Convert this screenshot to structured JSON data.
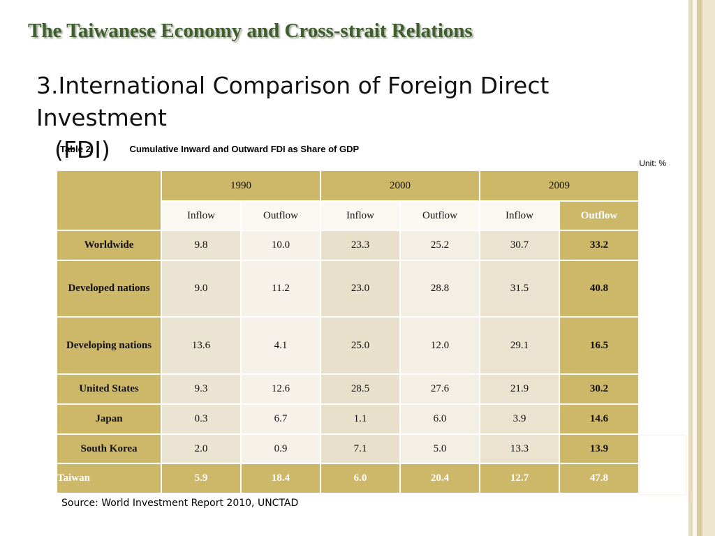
{
  "slide": {
    "title": "The Taiwanese Economy and Cross-strait Relations",
    "heading_line1": "3.International Comparison of Foreign Direct Investment",
    "heading_line2": "(FDI)"
  },
  "table": {
    "label": "Table 2",
    "title": "Cumulative Inward and Outward FDI as Share of GDP",
    "unit": "Unit: %",
    "years": [
      "1990",
      "2000",
      "2009"
    ],
    "subheaders": [
      "Inflow",
      "Outflow",
      "Inflow",
      "Outflow",
      "Inflow",
      "Outflow"
    ],
    "rows": [
      {
        "label": "Worldwide",
        "values": [
          "9.8",
          "10.0",
          "23.3",
          "25.2",
          "30.7",
          "33.2"
        ]
      },
      {
        "label": "Developed nations",
        "values": [
          "9.0",
          "11.2",
          "23.0",
          "28.8",
          "31.5",
          "40.8"
        ]
      },
      {
        "label": "Developing nations",
        "values": [
          "13.6",
          "4.1",
          "25.0",
          "12.0",
          "29.1",
          "16.5"
        ]
      },
      {
        "label": "United States",
        "values": [
          "9.3",
          "12.6",
          "28.5",
          "27.6",
          "21.9",
          "30.2"
        ]
      },
      {
        "label": "Japan",
        "values": [
          "0.3",
          "6.7",
          "1.1",
          "6.0",
          "3.9",
          "14.6"
        ]
      },
      {
        "label": "South Korea",
        "values": [
          "2.0",
          "0.9",
          "7.1",
          "5.0",
          "13.3",
          "13.9"
        ]
      },
      {
        "label": "Taiwan",
        "values": [
          "5.9",
          "18.4",
          "6.0",
          "20.4",
          "12.7",
          "47.8"
        ]
      }
    ],
    "source": "Source: World Investment Report 2010, UNCTAD"
  },
  "colors": {
    "header_gold": "#cdb768",
    "title_green": "#3f5f2f"
  }
}
